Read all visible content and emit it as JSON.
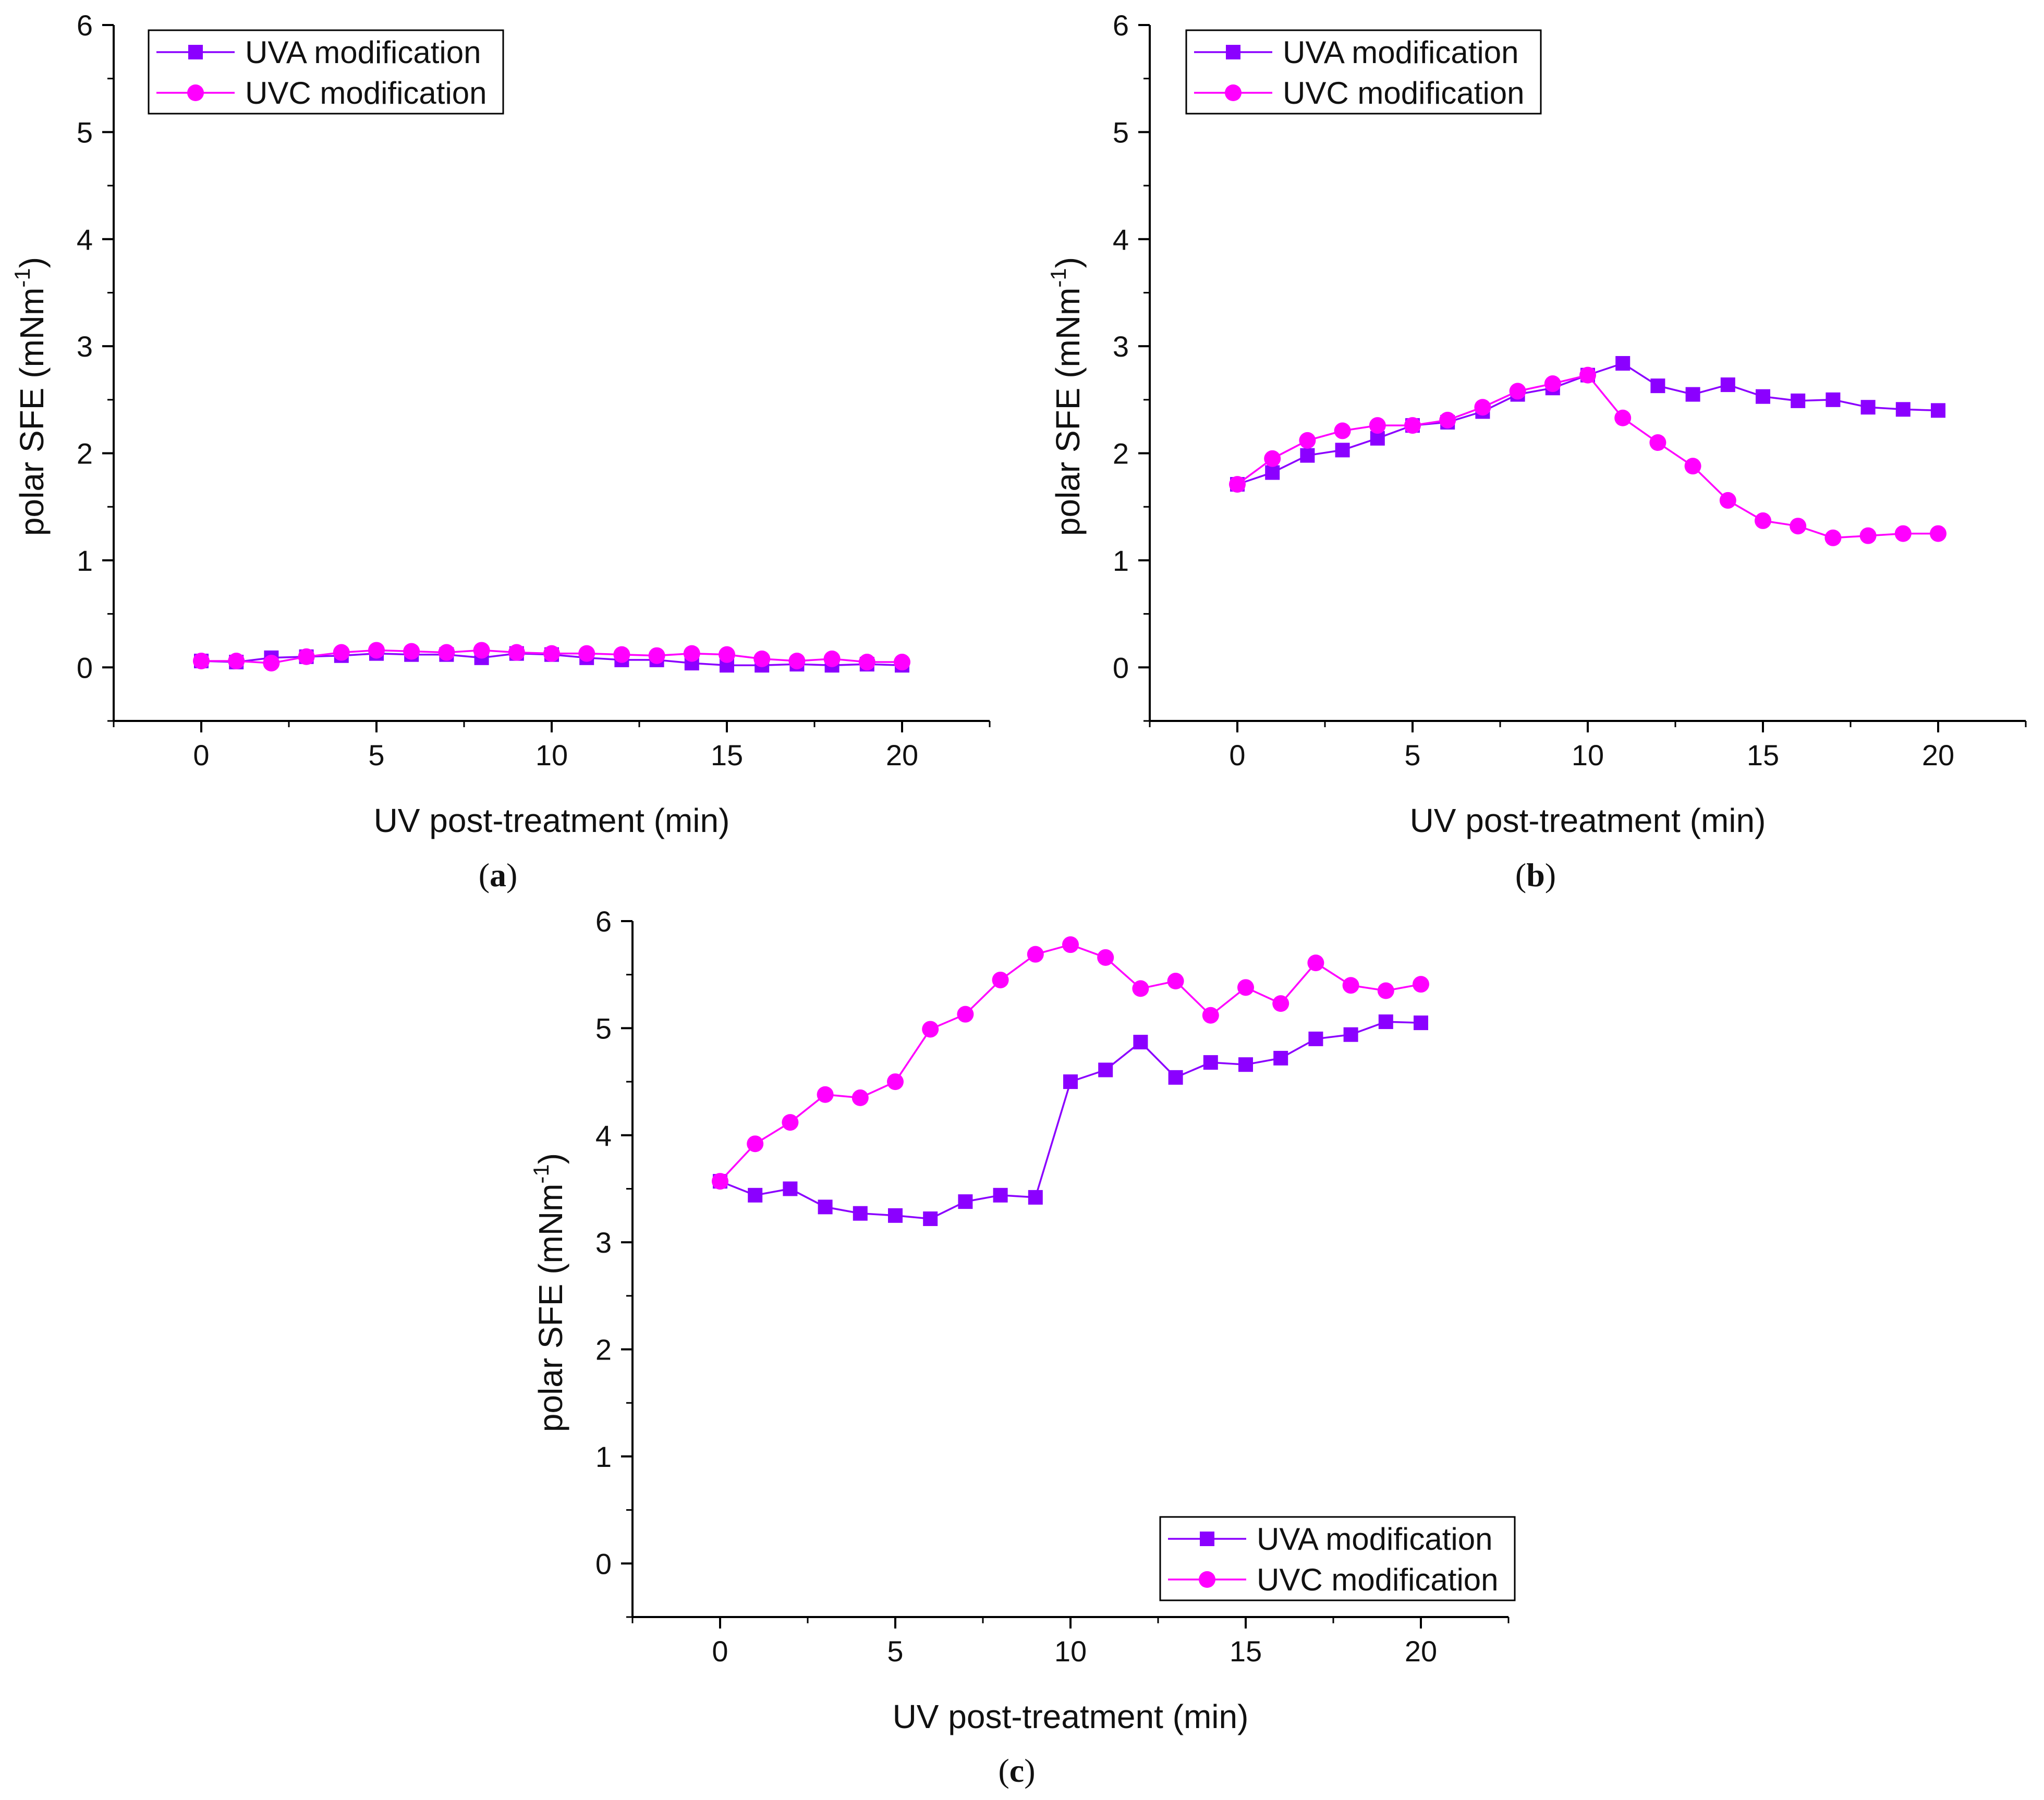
{
  "figure": {
    "panels": [
      {
        "label_letter": "a"
      },
      {
        "label_letter": "b"
      },
      {
        "label_letter": "c"
      }
    ]
  },
  "chart_data": [
    {
      "type": "line",
      "panel": "a",
      "xlabel": "UV post-treatment (min)",
      "ylabel": "polar SFE (mNm",
      "ylabel_superscript": "-1",
      "ylabel_close": ")",
      "xlim": [
        -2.5,
        22.5
      ],
      "ylim": [
        -0.5,
        6
      ],
      "xticks": [
        0,
        5,
        10,
        15,
        20
      ],
      "yticks": [
        0,
        1,
        2,
        3,
        4,
        5,
        6
      ],
      "legend_position": "top-left",
      "x": [
        0,
        1,
        2,
        3,
        4,
        5,
        6,
        7,
        8,
        9,
        10,
        11,
        12,
        13,
        14,
        15,
        16,
        17,
        18,
        19,
        20
      ],
      "series": [
        {
          "name": "UVA modification",
          "marker": "square",
          "color": "#8B00FF",
          "values": [
            0.06,
            0.05,
            0.09,
            0.1,
            0.11,
            0.13,
            0.12,
            0.12,
            0.09,
            0.13,
            0.12,
            0.09,
            0.07,
            0.07,
            0.04,
            0.02,
            0.02,
            0.03,
            0.02,
            0.03,
            0.02
          ]
        },
        {
          "name": "UVC modification",
          "marker": "circle",
          "color": "#FF00FF",
          "values": [
            0.06,
            0.06,
            0.04,
            0.1,
            0.14,
            0.16,
            0.15,
            0.14,
            0.16,
            0.14,
            0.13,
            0.13,
            0.12,
            0.11,
            0.13,
            0.12,
            0.08,
            0.06,
            0.08,
            0.05,
            0.05
          ]
        }
      ]
    },
    {
      "type": "line",
      "panel": "b",
      "xlabel": "UV post-treatment (min)",
      "ylabel": "polar SFE (mNm",
      "ylabel_superscript": "-1",
      "ylabel_close": ")",
      "xlim": [
        -2.5,
        22.5
      ],
      "ylim": [
        -0.5,
        6
      ],
      "xticks": [
        0,
        5,
        10,
        15,
        20
      ],
      "yticks": [
        0,
        1,
        2,
        3,
        4,
        5,
        6
      ],
      "legend_position": "top-left",
      "x": [
        0,
        1,
        2,
        3,
        4,
        5,
        6,
        7,
        8,
        9,
        10,
        11,
        12,
        13,
        14,
        15,
        16,
        17,
        18,
        19,
        20
      ],
      "series": [
        {
          "name": "UVA modification",
          "marker": "square",
          "color": "#8B00FF",
          "values": [
            1.71,
            1.82,
            1.98,
            2.03,
            2.14,
            2.26,
            2.29,
            2.39,
            2.55,
            2.61,
            2.73,
            2.84,
            2.63,
            2.55,
            2.64,
            2.53,
            2.49,
            2.5,
            2.43,
            2.41,
            2.4
          ]
        },
        {
          "name": "UVC modification",
          "marker": "circle",
          "color": "#FF00FF",
          "values": [
            1.71,
            1.95,
            2.12,
            2.21,
            2.26,
            2.26,
            2.31,
            2.43,
            2.58,
            2.65,
            2.73,
            2.33,
            2.1,
            1.88,
            1.56,
            1.37,
            1.32,
            1.21,
            1.23,
            1.25,
            1.25
          ]
        }
      ]
    },
    {
      "type": "line",
      "panel": "c",
      "xlabel": "UV post-treatment (min)",
      "ylabel": "polar SFE (mNm",
      "ylabel_superscript": "-1",
      "ylabel_close": ")",
      "xlim": [
        -2.5,
        22.5
      ],
      "ylim": [
        -0.5,
        6
      ],
      "xticks": [
        0,
        5,
        10,
        15,
        20
      ],
      "yticks": [
        0,
        1,
        2,
        3,
        4,
        5,
        6
      ],
      "legend_position": "bottom-right",
      "x": [
        0,
        1,
        2,
        3,
        4,
        5,
        6,
        7,
        8,
        9,
        10,
        11,
        12,
        13,
        14,
        15,
        16,
        17,
        18,
        19,
        20
      ],
      "series": [
        {
          "name": "UVA modification",
          "marker": "square",
          "color": "#8B00FF",
          "values": [
            3.57,
            3.44,
            3.5,
            3.33,
            3.27,
            3.25,
            3.22,
            3.38,
            3.44,
            3.42,
            4.5,
            4.61,
            4.87,
            4.54,
            4.68,
            4.66,
            4.72,
            4.9,
            4.94,
            5.06,
            5.05
          ]
        },
        {
          "name": "UVC modification",
          "marker": "circle",
          "color": "#FF00FF",
          "values": [
            3.57,
            3.92,
            4.12,
            4.38,
            4.35,
            4.5,
            4.99,
            5.13,
            5.45,
            5.69,
            5.78,
            5.66,
            5.37,
            5.44,
            5.12,
            5.38,
            5.23,
            5.61,
            5.4,
            5.35,
            5.41
          ]
        }
      ]
    }
  ]
}
